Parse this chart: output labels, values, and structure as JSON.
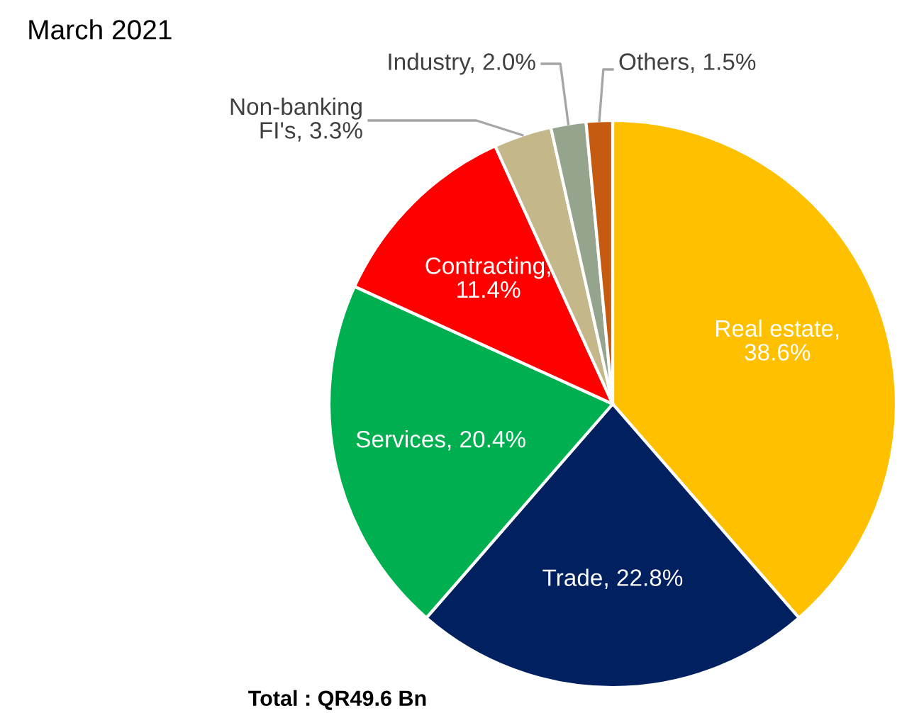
{
  "chart_data": {
    "type": "pie",
    "title": "March 2021",
    "categories": [
      "Real estate,\n38.6%",
      "Trade, 22.8%",
      "Services, 20.4%",
      "Contracting,\n11.4%",
      "Non-banking\nFI's, 3.3%",
      "Industry, 2.0%",
      "Others, 1.5%"
    ],
    "values": [
      38.6,
      22.8,
      20.4,
      11.4,
      3.3,
      2.0,
      1.5
    ],
    "colors": [
      "#ffc000",
      "#002060",
      "#00b050",
      "#ff0000",
      "#c4b78a",
      "#95a58d",
      "#c55a11"
    ],
    "legend": false,
    "annotations": [
      "Total : QR49.6 Bn"
    ]
  }
}
